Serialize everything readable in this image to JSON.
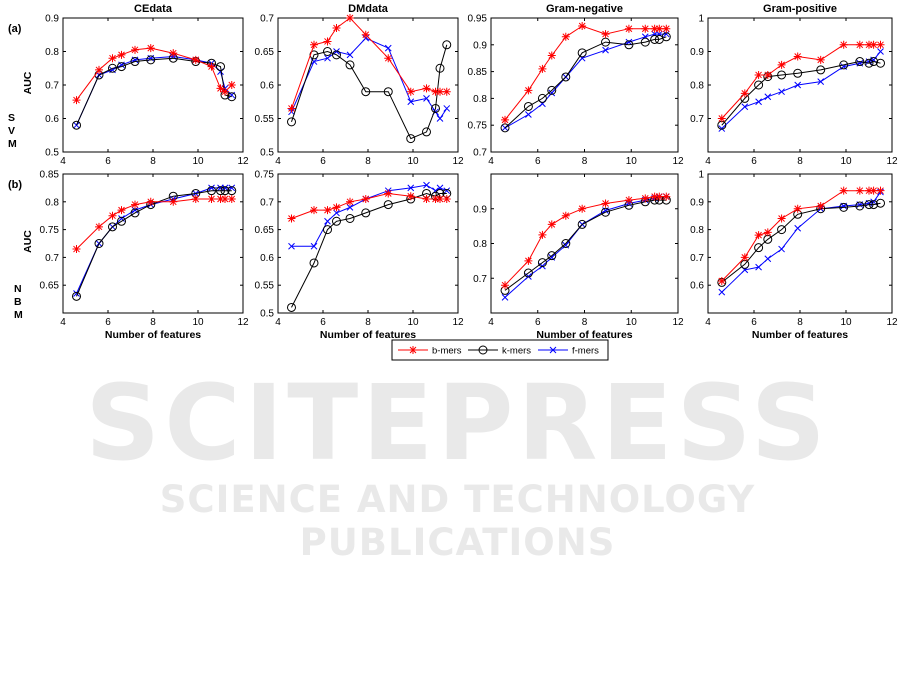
{
  "watermark": {
    "brand": "SCITEPRESS",
    "tagline": "SCIENCE AND TECHNOLOGY PUBLICATIONS"
  },
  "figure": {
    "row_labels": [
      {
        "tag": "(a)",
        "classifier": [
          "S",
          "V",
          "M"
        ]
      },
      {
        "tag": "(b)",
        "classifier": [
          "N",
          "B",
          "M"
        ]
      }
    ],
    "ylabel": "AUC",
    "xlabel": "Number of features",
    "colors": {
      "b-mers": "#ff0000",
      "k-mers": "#000000",
      "f-mers": "#0000ff"
    }
  },
  "legend": {
    "entries": [
      {
        "label": "b-mers",
        "color": "#ff0000",
        "marker": "star"
      },
      {
        "label": "k-mers",
        "color": "#000000",
        "marker": "circle"
      },
      {
        "label": "f-mers",
        "color": "#0000ff",
        "marker": "x"
      }
    ]
  },
  "chart_data": [
    {
      "type": "line",
      "title": "CEdata",
      "row": "SVM",
      "xlabel": "",
      "ylabel": "AUC",
      "xlim": [
        4,
        12
      ],
      "ylim": [
        0.5,
        0.9
      ],
      "xticks": [
        4,
        6,
        8,
        10,
        12
      ],
      "yticks": [
        0.5,
        0.6,
        0.7,
        0.8,
        0.9
      ],
      "x": [
        4.6,
        5.6,
        6.2,
        6.6,
        7.2,
        7.9,
        8.9,
        9.9,
        10.6,
        11,
        11.2,
        11.5
      ],
      "series": [
        {
          "name": "b-mers",
          "values": [
            0.655,
            0.745,
            0.78,
            0.79,
            0.805,
            0.81,
            0.795,
            0.775,
            0.755,
            0.69,
            0.68,
            0.7
          ]
        },
        {
          "name": "k-mers",
          "values": [
            0.58,
            0.73,
            0.75,
            0.755,
            0.77,
            0.775,
            0.78,
            0.77,
            0.765,
            0.755,
            0.67,
            0.665
          ]
        },
        {
          "name": "f-mers",
          "values": [
            0.58,
            0.73,
            0.745,
            0.76,
            0.775,
            0.78,
            0.785,
            0.775,
            0.765,
            0.74,
            0.69,
            0.67
          ]
        }
      ]
    },
    {
      "type": "line",
      "title": "DMdata",
      "row": "SVM",
      "xlabel": "",
      "ylabel": "",
      "xlim": [
        4,
        12
      ],
      "ylim": [
        0.5,
        0.7
      ],
      "xticks": [
        4,
        6,
        8,
        10,
        12
      ],
      "yticks": [
        0.5,
        0.55,
        0.6,
        0.65,
        0.7
      ],
      "x": [
        4.6,
        5.6,
        6.2,
        6.6,
        7.2,
        7.9,
        8.9,
        9.9,
        10.6,
        11,
        11.2,
        11.5
      ],
      "series": [
        {
          "name": "b-mers",
          "values": [
            0.565,
            0.66,
            0.665,
            0.685,
            0.7,
            0.675,
            0.64,
            0.59,
            0.595,
            0.59,
            0.59,
            0.59
          ]
        },
        {
          "name": "k-mers",
          "values": [
            0.545,
            0.645,
            0.65,
            0.645,
            0.63,
            0.59,
            0.59,
            0.52,
            0.53,
            0.565,
            0.625,
            0.66
          ]
        },
        {
          "name": "f-mers",
          "values": [
            0.56,
            0.635,
            0.64,
            0.65,
            0.645,
            0.67,
            0.655,
            0.575,
            0.58,
            0.56,
            0.55,
            0.565
          ]
        }
      ]
    },
    {
      "type": "line",
      "title": "Gram-negative",
      "row": "SVM",
      "xlabel": "",
      "ylabel": "",
      "xlim": [
        4,
        12
      ],
      "ylim": [
        0.7,
        0.95
      ],
      "xticks": [
        4,
        6,
        8,
        10,
        12
      ],
      "yticks": [
        0.7,
        0.75,
        0.8,
        0.85,
        0.9,
        0.95
      ],
      "x": [
        4.6,
        5.6,
        6.2,
        6.6,
        7.2,
        7.9,
        8.9,
        9.9,
        10.6,
        11,
        11.2,
        11.5
      ],
      "series": [
        {
          "name": "b-mers",
          "values": [
            0.76,
            0.815,
            0.855,
            0.88,
            0.915,
            0.935,
            0.92,
            0.93,
            0.93,
            0.93,
            0.93,
            0.93
          ]
        },
        {
          "name": "k-mers",
          "values": [
            0.745,
            0.785,
            0.8,
            0.815,
            0.84,
            0.885,
            0.905,
            0.9,
            0.905,
            0.91,
            0.91,
            0.915
          ]
        },
        {
          "name": "f-mers",
          "values": [
            0.745,
            0.77,
            0.79,
            0.81,
            0.84,
            0.875,
            0.89,
            0.905,
            0.915,
            0.92,
            0.92,
            0.92
          ]
        }
      ]
    },
    {
      "type": "line",
      "title": "Gram-positive",
      "row": "SVM",
      "xlabel": "",
      "ylabel": "",
      "xlim": [
        4,
        12
      ],
      "ylim": [
        0.6,
        1.0
      ],
      "xticks": [
        4,
        6,
        8,
        10,
        12
      ],
      "yticks": [
        0.7,
        0.8,
        0.9,
        1.0
      ],
      "x": [
        4.6,
        5.6,
        6.2,
        6.6,
        7.2,
        7.9,
        8.9,
        9.9,
        10.6,
        11,
        11.2,
        11.5
      ],
      "series": [
        {
          "name": "b-mers",
          "values": [
            0.7,
            0.775,
            0.83,
            0.83,
            0.86,
            0.885,
            0.875,
            0.92,
            0.92,
            0.92,
            0.92,
            0.92
          ]
        },
        {
          "name": "k-mers",
          "values": [
            0.68,
            0.76,
            0.8,
            0.825,
            0.83,
            0.835,
            0.845,
            0.86,
            0.87,
            0.865,
            0.87,
            0.865
          ]
        },
        {
          "name": "f-mers",
          "values": [
            0.67,
            0.735,
            0.75,
            0.765,
            0.78,
            0.8,
            0.81,
            0.855,
            0.865,
            0.87,
            0.875,
            0.9
          ]
        }
      ]
    },
    {
      "type": "line",
      "title": "",
      "row": "NBM",
      "xlabel": "Number of features",
      "ylabel": "AUC",
      "xlim": [
        4,
        12
      ],
      "ylim": [
        0.6,
        0.85
      ],
      "xticks": [
        4,
        6,
        8,
        10,
        12
      ],
      "yticks": [
        0.65,
        0.7,
        0.75,
        0.8,
        0.85
      ],
      "x": [
        4.6,
        5.6,
        6.2,
        6.6,
        7.2,
        7.9,
        8.9,
        9.9,
        10.6,
        11,
        11.2,
        11.5
      ],
      "series": [
        {
          "name": "b-mers",
          "values": [
            0.715,
            0.755,
            0.775,
            0.785,
            0.795,
            0.8,
            0.8,
            0.805,
            0.805,
            0.805,
            0.805,
            0.805
          ]
        },
        {
          "name": "k-mers",
          "values": [
            0.63,
            0.725,
            0.755,
            0.765,
            0.78,
            0.795,
            0.81,
            0.815,
            0.82,
            0.82,
            0.82,
            0.82
          ]
        },
        {
          "name": "f-mers",
          "values": [
            0.635,
            0.725,
            0.755,
            0.77,
            0.785,
            0.795,
            0.805,
            0.815,
            0.825,
            0.825,
            0.825,
            0.825
          ]
        }
      ]
    },
    {
      "type": "line",
      "title": "",
      "row": "NBM",
      "xlabel": "Number of features",
      "ylabel": "",
      "xlim": [
        4,
        12
      ],
      "ylim": [
        0.5,
        0.75
      ],
      "xticks": [
        4,
        6,
        8,
        10,
        12
      ],
      "yticks": [
        0.5,
        0.55,
        0.6,
        0.65,
        0.7,
        0.75
      ],
      "x": [
        4.6,
        5.6,
        6.2,
        6.6,
        7.2,
        7.9,
        8.9,
        9.9,
        10.6,
        11,
        11.2,
        11.5
      ],
      "series": [
        {
          "name": "b-mers",
          "values": [
            0.67,
            0.685,
            0.685,
            0.69,
            0.7,
            0.705,
            0.715,
            0.71,
            0.705,
            0.705,
            0.705,
            0.705
          ]
        },
        {
          "name": "k-mers",
          "values": [
            0.51,
            0.59,
            0.65,
            0.665,
            0.67,
            0.68,
            0.695,
            0.705,
            0.715,
            0.71,
            0.715,
            0.715
          ]
        },
        {
          "name": "f-mers",
          "values": [
            0.62,
            0.62,
            0.665,
            0.68,
            0.69,
            0.705,
            0.72,
            0.725,
            0.73,
            0.72,
            0.725,
            0.72
          ]
        }
      ]
    },
    {
      "type": "line",
      "title": "",
      "row": "NBM",
      "xlabel": "Number of features",
      "ylabel": "",
      "xlim": [
        4,
        12
      ],
      "ylim": [
        0.6,
        1.0
      ],
      "xticks": [
        4,
        6,
        8,
        10,
        12
      ],
      "yticks": [
        0.7,
        0.8,
        0.9
      ],
      "x": [
        4.6,
        5.6,
        6.2,
        6.6,
        7.2,
        7.9,
        8.9,
        9.9,
        10.6,
        11,
        11.2,
        11.5
      ],
      "series": [
        {
          "name": "b-mers",
          "values": [
            0.68,
            0.75,
            0.825,
            0.855,
            0.88,
            0.9,
            0.915,
            0.925,
            0.93,
            0.935,
            0.935,
            0.935
          ]
        },
        {
          "name": "k-mers",
          "values": [
            0.665,
            0.715,
            0.745,
            0.765,
            0.8,
            0.855,
            0.89,
            0.91,
            0.92,
            0.925,
            0.925,
            0.925
          ]
        },
        {
          "name": "f-mers",
          "values": [
            0.645,
            0.705,
            0.735,
            0.76,
            0.795,
            0.855,
            0.895,
            0.915,
            0.925,
            0.93,
            0.935,
            0.935
          ]
        }
      ]
    },
    {
      "type": "line",
      "title": "",
      "row": "NBM",
      "xlabel": "Number of features",
      "ylabel": "",
      "xlim": [
        4,
        12
      ],
      "ylim": [
        0.5,
        1.0
      ],
      "xticks": [
        4,
        6,
        8,
        10,
        12
      ],
      "yticks": [
        0.6,
        0.7,
        0.8,
        0.9,
        1.0
      ],
      "x": [
        4.6,
        5.6,
        6.2,
        6.6,
        7.2,
        7.9,
        8.9,
        9.9,
        10.6,
        11,
        11.2,
        11.5
      ],
      "series": [
        {
          "name": "b-mers",
          "values": [
            0.615,
            0.7,
            0.78,
            0.79,
            0.84,
            0.875,
            0.885,
            0.94,
            0.94,
            0.94,
            0.94,
            0.94
          ]
        },
        {
          "name": "k-mers",
          "values": [
            0.61,
            0.675,
            0.735,
            0.765,
            0.8,
            0.855,
            0.875,
            0.88,
            0.885,
            0.89,
            0.89,
            0.895
          ]
        },
        {
          "name": "f-mers",
          "values": [
            0.575,
            0.655,
            0.665,
            0.695,
            0.73,
            0.805,
            0.875,
            0.885,
            0.89,
            0.895,
            0.9,
            0.935
          ]
        }
      ]
    }
  ]
}
